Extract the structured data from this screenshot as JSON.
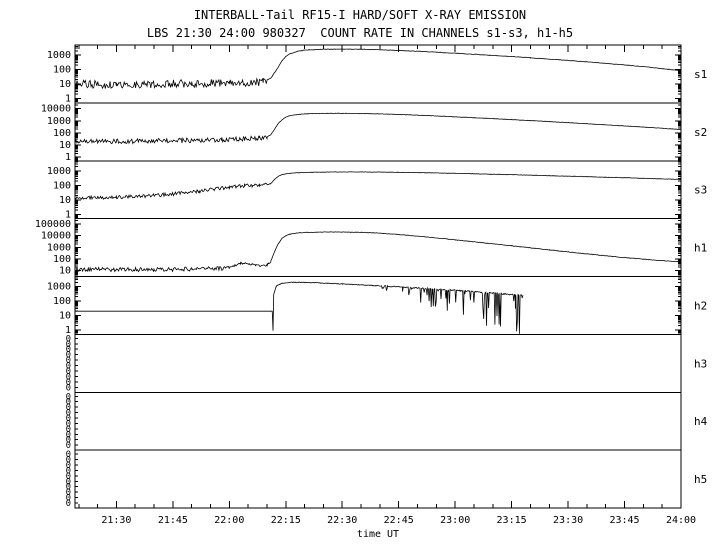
{
  "header": {
    "title": "INTERBALL-Tail RF15-I HARD/SOFT X-RAY EMISSION",
    "subtitle": "LBS 21:30 24:00 980327  COUNT RATE IN CHANNELS s1-s3, h1-h5"
  },
  "colors": {
    "line": "#000000",
    "frame": "#000000",
    "background": "#ffffff"
  },
  "chart_data": {
    "type": "line",
    "title": "INTERBALL-Tail RF15-I HARD/SOFT X-RAY EMISSION",
    "subtitle": "LBS 21:30 24:00 980327  COUNT RATE IN CHANNELS s1-s3, h1-h5",
    "xlabel": "time UT",
    "x_unit": "minutes after 21:00 UT",
    "xlim": [
      19,
      180
    ],
    "x_minor_step": 5,
    "x_major_ticks": [
      {
        "x": 30,
        "label": "21:30"
      },
      {
        "x": 45,
        "label": "21:45"
      },
      {
        "x": 60,
        "label": "22:00"
      },
      {
        "x": 75,
        "label": "22:15"
      },
      {
        "x": 90,
        "label": "22:30"
      },
      {
        "x": 105,
        "label": "22:45"
      },
      {
        "x": 120,
        "label": "23:00"
      },
      {
        "x": 135,
        "label": "23:15"
      },
      {
        "x": 150,
        "label": "23:30"
      },
      {
        "x": 165,
        "label": "23:45"
      },
      {
        "x": 180,
        "label": "24:00"
      }
    ],
    "panels": [
      {
        "id": "s1",
        "label": "s1",
        "scale": "log",
        "ylim": [
          0.5,
          5000
        ],
        "yticks": [
          {
            "v": 1,
            "label": "1"
          },
          {
            "v": 10,
            "label": "10"
          },
          {
            "v": 100,
            "label": "100"
          },
          {
            "v": 1000,
            "label": "1000"
          }
        ],
        "points": [
          [
            19,
            10
          ],
          [
            30,
            9
          ],
          [
            40,
            10
          ],
          [
            50,
            11
          ],
          [
            60,
            12
          ],
          [
            66,
            13
          ],
          [
            69,
            15
          ],
          [
            71,
            25
          ],
          [
            72,
            60
          ],
          [
            73,
            150
          ],
          [
            74,
            400
          ],
          [
            75,
            800
          ],
          [
            76,
            1200
          ],
          [
            78,
            1800
          ],
          [
            80,
            2200
          ],
          [
            84,
            2500
          ],
          [
            88,
            2600
          ],
          [
            92,
            2600
          ],
          [
            96,
            2500
          ],
          [
            100,
            2350
          ],
          [
            105,
            2100
          ],
          [
            110,
            1850
          ],
          [
            115,
            1600
          ],
          [
            120,
            1350
          ],
          [
            125,
            1150
          ],
          [
            130,
            950
          ],
          [
            135,
            800
          ],
          [
            140,
            650
          ],
          [
            145,
            530
          ],
          [
            150,
            430
          ],
          [
            155,
            340
          ],
          [
            160,
            270
          ],
          [
            165,
            210
          ],
          [
            170,
            160
          ],
          [
            175,
            115
          ],
          [
            180,
            85
          ]
        ],
        "noise": [
          {
            "x0": 19,
            "x1": 70,
            "amp": 0.28
          },
          {
            "x0": 70,
            "x1": 180,
            "amp": 0.015
          }
        ]
      },
      {
        "id": "s2",
        "label": "s2",
        "scale": "log",
        "ylim": [
          0.5,
          30000
        ],
        "yticks": [
          {
            "v": 1,
            "label": "1"
          },
          {
            "v": 10,
            "label": "10"
          },
          {
            "v": 100,
            "label": "100"
          },
          {
            "v": 1000,
            "label": "1000"
          },
          {
            "v": 10000,
            "label": "10000"
          }
        ],
        "points": [
          [
            19,
            20
          ],
          [
            30,
            20
          ],
          [
            40,
            21
          ],
          [
            50,
            24
          ],
          [
            58,
            28
          ],
          [
            64,
            32
          ],
          [
            68,
            38
          ],
          [
            70,
            45
          ],
          [
            71,
            70
          ],
          [
            72,
            200
          ],
          [
            73,
            600
          ],
          [
            74,
            1200
          ],
          [
            75,
            2000
          ],
          [
            76,
            2600
          ],
          [
            78,
            3300
          ],
          [
            80,
            3700
          ],
          [
            84,
            4000
          ],
          [
            88,
            4100
          ],
          [
            92,
            4050
          ],
          [
            96,
            3900
          ],
          [
            100,
            3650
          ],
          [
            105,
            3300
          ],
          [
            110,
            2900
          ],
          [
            115,
            2500
          ],
          [
            120,
            2100
          ],
          [
            125,
            1800
          ],
          [
            130,
            1500
          ],
          [
            135,
            1250
          ],
          [
            140,
            1030
          ],
          [
            145,
            850
          ],
          [
            150,
            700
          ],
          [
            155,
            570
          ],
          [
            160,
            460
          ],
          [
            165,
            370
          ],
          [
            170,
            300
          ],
          [
            175,
            240
          ],
          [
            180,
            190
          ]
        ],
        "noise": [
          {
            "x0": 19,
            "x1": 70,
            "amp": 0.2
          },
          {
            "x0": 70,
            "x1": 180,
            "amp": 0.015
          }
        ]
      },
      {
        "id": "s3",
        "label": "s3",
        "scale": "log",
        "ylim": [
          0.5,
          5000
        ],
        "yticks": [
          {
            "v": 1,
            "label": "1"
          },
          {
            "v": 10,
            "label": "10"
          },
          {
            "v": 100,
            "label": "100"
          },
          {
            "v": 1000,
            "label": "1000"
          }
        ],
        "points": [
          [
            19,
            14
          ],
          [
            25,
            14
          ],
          [
            30,
            15
          ],
          [
            35,
            17
          ],
          [
            40,
            20
          ],
          [
            44,
            24
          ],
          [
            48,
            30
          ],
          [
            52,
            40
          ],
          [
            56,
            55
          ],
          [
            60,
            72
          ],
          [
            62,
            85
          ],
          [
            64,
            95
          ],
          [
            66,
            100
          ],
          [
            68,
            103
          ],
          [
            70,
            108
          ],
          [
            71,
            130
          ],
          [
            72,
            250
          ],
          [
            73,
            420
          ],
          [
            74,
            560
          ],
          [
            76,
            680
          ],
          [
            78,
            740
          ],
          [
            82,
            800
          ],
          [
            86,
            830
          ],
          [
            90,
            840
          ],
          [
            95,
            835
          ],
          [
            100,
            820
          ],
          [
            105,
            790
          ],
          [
            110,
            755
          ],
          [
            115,
            715
          ],
          [
            120,
            670
          ],
          [
            125,
            630
          ],
          [
            130,
            585
          ],
          [
            135,
            545
          ],
          [
            140,
            505
          ],
          [
            145,
            465
          ],
          [
            150,
            430
          ],
          [
            155,
            395
          ],
          [
            160,
            365
          ],
          [
            165,
            335
          ],
          [
            170,
            305
          ],
          [
            175,
            280
          ],
          [
            180,
            255
          ]
        ],
        "noise": [
          {
            "x0": 19,
            "x1": 70,
            "amp": 0.12
          },
          {
            "x0": 70,
            "x1": 180,
            "amp": 0.012
          }
        ]
      },
      {
        "id": "h1",
        "label": "h1",
        "scale": "log",
        "ylim": [
          3,
          300000
        ],
        "yticks": [
          {
            "v": 10,
            "label": "10"
          },
          {
            "v": 100,
            "label": "100"
          },
          {
            "v": 1000,
            "label": "1000"
          },
          {
            "v": 10000,
            "label": "10000"
          },
          {
            "v": 100000,
            "label": "100000"
          }
        ],
        "points": [
          [
            19,
            12
          ],
          [
            30,
            12
          ],
          [
            40,
            12
          ],
          [
            50,
            13
          ],
          [
            56,
            14
          ],
          [
            60,
            16
          ],
          [
            61,
            22
          ],
          [
            62,
            32
          ],
          [
            63,
            40
          ],
          [
            64,
            42
          ],
          [
            65,
            38
          ],
          [
            66,
            33
          ],
          [
            67,
            28
          ],
          [
            68,
            26
          ],
          [
            69,
            27
          ],
          [
            70,
            30
          ],
          [
            71,
            60
          ],
          [
            72,
            400
          ],
          [
            73,
            2000
          ],
          [
            74,
            6000
          ],
          [
            75,
            10000
          ],
          [
            76,
            13500
          ],
          [
            78,
            17000
          ],
          [
            80,
            19000
          ],
          [
            84,
            20500
          ],
          [
            88,
            21000
          ],
          [
            92,
            20500
          ],
          [
            96,
            19000
          ],
          [
            100,
            16500
          ],
          [
            104,
            13500
          ],
          [
            108,
            10500
          ],
          [
            112,
            8000
          ],
          [
            116,
            6000
          ],
          [
            120,
            4400
          ],
          [
            125,
            3000
          ],
          [
            130,
            2000
          ],
          [
            135,
            1350
          ],
          [
            140,
            900
          ],
          [
            145,
            600
          ],
          [
            150,
            400
          ],
          [
            155,
            270
          ],
          [
            160,
            185
          ],
          [
            165,
            130
          ],
          [
            170,
            95
          ],
          [
            175,
            70
          ],
          [
            180,
            55
          ]
        ],
        "noise": [
          {
            "x0": 19,
            "x1": 60,
            "amp": 0.18
          },
          {
            "x0": 60,
            "x1": 71,
            "amp": 0.08
          },
          {
            "x0": 71,
            "x1": 180,
            "amp": 0.02
          }
        ]
      },
      {
        "id": "h2",
        "label": "h2",
        "scale": "log",
        "ylim": [
          0.5,
          5000
        ],
        "yticks": [
          {
            "v": 1,
            "label": "1"
          },
          {
            "v": 10,
            "label": "10"
          },
          {
            "v": 100,
            "label": "100"
          },
          {
            "v": 1000,
            "label": "1000"
          }
        ],
        "points": [
          [
            19,
            20
          ],
          [
            71.4,
            20
          ],
          [
            71.6,
            0.9
          ],
          [
            71.8,
            300
          ],
          [
            72.5,
            1100
          ],
          [
            74,
            1700
          ],
          [
            76,
            1950
          ],
          [
            78,
            2000
          ],
          [
            80,
            1950
          ],
          [
            83,
            1850
          ],
          [
            86,
            1700
          ],
          [
            90,
            1530
          ],
          [
            94,
            1360
          ],
          [
            98,
            1200
          ],
          [
            102,
            1060
          ],
          [
            106,
            930
          ],
          [
            110,
            810
          ],
          [
            114,
            700
          ],
          [
            118,
            600
          ],
          [
            122,
            510
          ],
          [
            126,
            430
          ],
          [
            130,
            360
          ],
          [
            133,
            310
          ],
          [
            136,
            270
          ],
          [
            138,
            250
          ]
        ],
        "noise": [
          {
            "x0": 19,
            "x1": 71.4,
            "amp": 0
          },
          {
            "x0": 72,
            "x1": 100,
            "amp": 0.02
          },
          {
            "x0": 100,
            "x1": 138,
            "amp": 0.04
          }
        ],
        "spikes": {
          "x0": 98,
          "x1": 138,
          "p": 0.2,
          "max": 3.2
        }
      },
      {
        "id": "h3",
        "label": "h3",
        "scale": "zero",
        "zero_count": 10,
        "points": []
      },
      {
        "id": "h4",
        "label": "h4",
        "scale": "zero",
        "zero_count": 10,
        "points": []
      },
      {
        "id": "h5",
        "label": "h5",
        "scale": "zero",
        "zero_count": 10,
        "points": []
      }
    ]
  }
}
